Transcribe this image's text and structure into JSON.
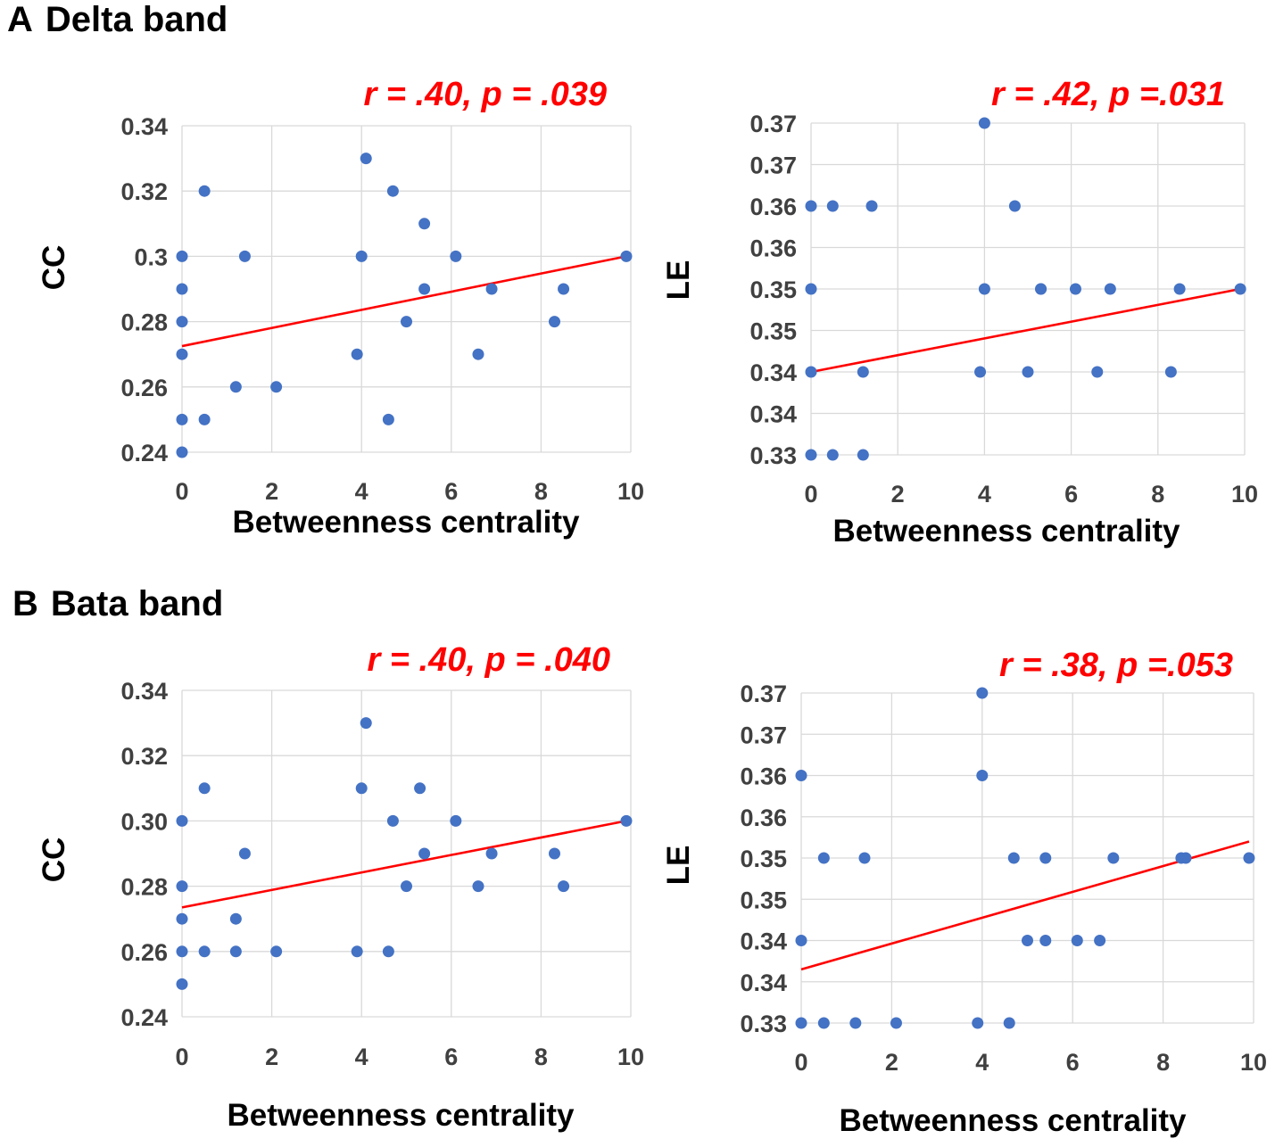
{
  "sections": [
    {
      "letter": "A",
      "title": "Delta band"
    },
    {
      "letter": "B",
      "title": "Bata band"
    }
  ],
  "chart_data": [
    {
      "type": "scatter",
      "panel": "A-left",
      "annotation": {
        "r_symbol": "r",
        "r_value": "= .40,",
        "p_symbol": "p",
        "p_value": "= .039"
      },
      "xlabel": "Betweenness centrality",
      "ylabel": "CC",
      "xlim": [
        0,
        10
      ],
      "ylim": [
        0.24,
        0.34
      ],
      "xticks": [
        0,
        2,
        4,
        6,
        8,
        10
      ],
      "xtick_labels": [
        "0",
        "2",
        "4",
        "6",
        "8",
        "10"
      ],
      "yticks": [
        0.24,
        0.26,
        0.28,
        0.3,
        0.32,
        0.34
      ],
      "ytick_labels": [
        "0.24",
        "0.26",
        "0.28",
        "0.3",
        "0.32",
        "0.34"
      ],
      "grid": true,
      "trendline": {
        "x": [
          0,
          9.9
        ],
        "y": [
          0.2725,
          0.3
        ]
      },
      "points": [
        [
          0,
          0.3
        ],
        [
          0,
          0.29
        ],
        [
          0,
          0.28
        ],
        [
          0,
          0.27
        ],
        [
          0,
          0.25
        ],
        [
          0,
          0.24
        ],
        [
          0.5,
          0.32
        ],
        [
          0.5,
          0.25
        ],
        [
          1.2,
          0.26
        ],
        [
          1.4,
          0.3
        ],
        [
          2.1,
          0.26
        ],
        [
          3.9,
          0.27
        ],
        [
          4.0,
          0.3
        ],
        [
          4.1,
          0.33
        ],
        [
          4.6,
          0.25
        ],
        [
          4.7,
          0.32
        ],
        [
          5.0,
          0.28
        ],
        [
          5.4,
          0.31
        ],
        [
          5.4,
          0.29
        ],
        [
          6.1,
          0.3
        ],
        [
          6.6,
          0.27
        ],
        [
          6.9,
          0.29
        ],
        [
          8.3,
          0.28
        ],
        [
          8.5,
          0.29
        ],
        [
          9.9,
          0.3
        ]
      ]
    },
    {
      "type": "scatter",
      "panel": "A-right",
      "annotation": {
        "r_symbol": "r",
        "r_value": "= .42,",
        "p_symbol": "p",
        "p_value": "=.031"
      },
      "xlabel": "Betweenness centrality",
      "ylabel": "LE",
      "xlim": [
        0,
        10
      ],
      "ylim": [
        0,
        8
      ],
      "xticks": [
        0,
        2,
        4,
        6,
        8,
        10
      ],
      "xtick_labels": [
        "0",
        "2",
        "4",
        "6",
        "8",
        "10"
      ],
      "yticks": [
        0,
        1,
        2,
        3,
        4,
        5,
        6,
        7,
        8
      ],
      "ytick_labels": [
        "0.33",
        "0.34",
        "0.34",
        "0.35",
        "0.35",
        "0.36",
        "0.36",
        "0.37",
        "0.37"
      ],
      "grid": true,
      "trendline": {
        "x": [
          0,
          9.9
        ],
        "y": [
          2.0,
          4.0
        ]
      },
      "points": [
        [
          0,
          6
        ],
        [
          0.5,
          6
        ],
        [
          1.4,
          6
        ],
        [
          0,
          4
        ],
        [
          0,
          2
        ],
        [
          1.2,
          2
        ],
        [
          0,
          0
        ],
        [
          0.5,
          0
        ],
        [
          1.2,
          0
        ],
        [
          4.0,
          8
        ],
        [
          4.7,
          6
        ],
        [
          4.0,
          4
        ],
        [
          5.3,
          4
        ],
        [
          5.3,
          4
        ],
        [
          6.1,
          4
        ],
        [
          6.9,
          4
        ],
        [
          8.5,
          4
        ],
        [
          9.9,
          4
        ],
        [
          3.9,
          2
        ],
        [
          5.0,
          2
        ],
        [
          6.6,
          2
        ],
        [
          8.3,
          2
        ]
      ]
    },
    {
      "type": "scatter",
      "panel": "B-left",
      "annotation": {
        "r_symbol": "r",
        "r_value": "= .40,",
        "p_symbol": "p",
        "p_value": "= .040"
      },
      "xlabel": "Betweenness centrality",
      "ylabel": "CC",
      "xlim": [
        0,
        10
      ],
      "ylim": [
        0.24,
        0.34
      ],
      "xticks": [
        0,
        2,
        4,
        6,
        8,
        10
      ],
      "xtick_labels": [
        "0",
        "2",
        "4",
        "6",
        "8",
        "10"
      ],
      "yticks": [
        0.24,
        0.26,
        0.28,
        0.3,
        0.32,
        0.34
      ],
      "ytick_labels": [
        "0.24",
        "0.26",
        "0.28",
        "0.30",
        "0.32",
        "0.34"
      ],
      "grid": true,
      "trendline": {
        "x": [
          0,
          9.9
        ],
        "y": [
          0.2735,
          0.3
        ]
      },
      "points": [
        [
          0,
          0.3
        ],
        [
          0,
          0.28
        ],
        [
          0,
          0.27
        ],
        [
          0,
          0.26
        ],
        [
          0,
          0.25
        ],
        [
          0.5,
          0.31
        ],
        [
          0.5,
          0.26
        ],
        [
          1.2,
          0.27
        ],
        [
          1.2,
          0.26
        ],
        [
          1.4,
          0.29
        ],
        [
          2.1,
          0.26
        ],
        [
          3.9,
          0.26
        ],
        [
          4.0,
          0.31
        ],
        [
          4.1,
          0.33
        ],
        [
          4.6,
          0.26
        ],
        [
          4.7,
          0.3
        ],
        [
          5.0,
          0.28
        ],
        [
          5.3,
          0.31
        ],
        [
          5.4,
          0.29
        ],
        [
          6.1,
          0.3
        ],
        [
          6.6,
          0.28
        ],
        [
          6.9,
          0.29
        ],
        [
          8.3,
          0.29
        ],
        [
          8.5,
          0.28
        ],
        [
          9.9,
          0.3
        ]
      ]
    },
    {
      "type": "scatter",
      "panel": "B-right",
      "annotation": {
        "r_symbol": "r",
        "r_value": "= .38,",
        "p_symbol": "p",
        "p_value": "=.053"
      },
      "xlabel": "Betweenness centrality",
      "ylabel": "LE",
      "xlim": [
        0,
        10
      ],
      "ylim": [
        0,
        8
      ],
      "xticks": [
        0,
        2,
        4,
        6,
        8,
        10
      ],
      "xtick_labels": [
        "0",
        "2",
        "4",
        "6",
        "8",
        "10"
      ],
      "yticks": [
        0,
        1,
        2,
        3,
        4,
        5,
        6,
        7,
        8
      ],
      "ytick_labels": [
        "0.33",
        "0.34",
        "0.34",
        "0.35",
        "0.35",
        "0.36",
        "0.36",
        "0.37",
        "0.37"
      ],
      "grid": true,
      "trendline": {
        "x": [
          0,
          9.9
        ],
        "y": [
          1.3,
          4.4
        ]
      },
      "points": [
        [
          0,
          6
        ],
        [
          0,
          2
        ],
        [
          0,
          0
        ],
        [
          0.5,
          4
        ],
        [
          0.5,
          0
        ],
        [
          1.2,
          0
        ],
        [
          1.4,
          4
        ],
        [
          2.1,
          0
        ],
        [
          3.9,
          0
        ],
        [
          4.0,
          8
        ],
        [
          4.0,
          6
        ],
        [
          4.7,
          4
        ],
        [
          4.6,
          0
        ],
        [
          5.0,
          2
        ],
        [
          5.4,
          2
        ],
        [
          5.4,
          4
        ],
        [
          6.1,
          2
        ],
        [
          6.6,
          2
        ],
        [
          6.9,
          4
        ],
        [
          8.4,
          4
        ],
        [
          8.5,
          4
        ],
        [
          9.9,
          4
        ]
      ]
    }
  ]
}
